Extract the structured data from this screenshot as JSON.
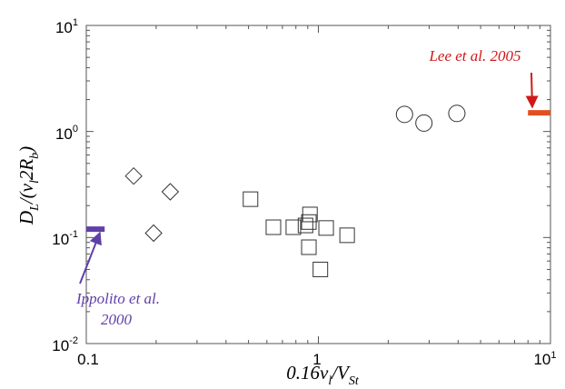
{
  "chart_data": {
    "type": "scatter",
    "title": "",
    "xlabel": {
      "base": "0.16v",
      "sub1": "l",
      "mid": "/V",
      "sub2": "St"
    },
    "ylabel": {
      "base": "D",
      "sub1": "L",
      "mid": "/(v",
      "sub2": "l",
      "mid2": "2R",
      "sub3": "b",
      "end": ")"
    },
    "xscale": "log",
    "yscale": "log",
    "xlim": [
      0.1,
      10
    ],
    "ylim": [
      0.01,
      10
    ],
    "xticks": [
      {
        "value": 0.1,
        "label": "0.1"
      },
      {
        "value": 1,
        "label": "1"
      },
      {
        "value": 10,
        "label": "10",
        "sup": "1"
      }
    ],
    "yticks": [
      {
        "value": 0.01,
        "base": "10",
        "exp": "-2"
      },
      {
        "value": 0.1,
        "base": "10",
        "exp": "-1"
      },
      {
        "value": 1,
        "base": "10",
        "exp": "0"
      },
      {
        "value": 10,
        "base": "10",
        "exp": "1"
      }
    ],
    "grid": false,
    "series": [
      {
        "marker": "diamond",
        "points": [
          {
            "x": 0.16,
            "y": 0.38
          },
          {
            "x": 0.195,
            "y": 0.11
          },
          {
            "x": 0.23,
            "y": 0.27
          }
        ]
      },
      {
        "marker": "square",
        "points": [
          {
            "x": 0.51,
            "y": 0.23
          },
          {
            "x": 0.64,
            "y": 0.125
          },
          {
            "x": 0.78,
            "y": 0.125
          },
          {
            "x": 0.88,
            "y": 0.13
          },
          {
            "x": 0.92,
            "y": 0.165
          },
          {
            "x": 0.91,
            "y": 0.14
          },
          {
            "x": 0.91,
            "y": 0.081
          },
          {
            "x": 1.02,
            "y": 0.05
          },
          {
            "x": 1.08,
            "y": 0.123
          },
          {
            "x": 1.33,
            "y": 0.105
          }
        ]
      },
      {
        "marker": "circle",
        "points": [
          {
            "x": 2.35,
            "y": 1.45
          },
          {
            "x": 2.85,
            "y": 1.2
          },
          {
            "x": 3.95,
            "y": 1.48
          }
        ]
      }
    ],
    "reference_bars": [
      {
        "x_start": 0.1,
        "x_end": 0.12,
        "y": 0.12,
        "color": "#6040a8"
      },
      {
        "x_start": 8.0,
        "x_end": 10,
        "y": 1.5,
        "color": "#e05020"
      }
    ],
    "annotations": [
      {
        "lines": [
          "Ippolito et al.",
          "2000"
        ],
        "color": "#6040a8",
        "arrow_to": {
          "x": 0.112,
          "y": 0.12
        }
      },
      {
        "lines": [
          "Lee et al. 2005"
        ],
        "color": "#d01818",
        "arrow_to": {
          "x": 8.4,
          "y": 1.5
        }
      }
    ]
  }
}
